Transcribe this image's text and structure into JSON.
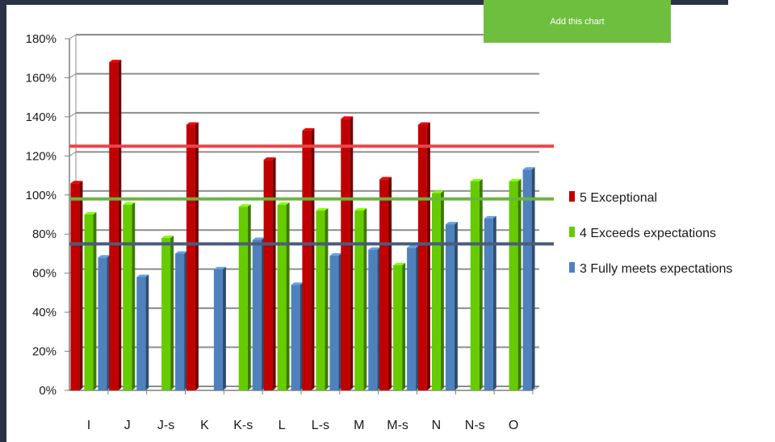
{
  "add_button": {
    "label": "Add this chart"
  },
  "chart_data": {
    "type": "bar",
    "categories": [
      "I",
      "J",
      "J-s",
      "K",
      "K-s",
      "L",
      "L-s",
      "M",
      "M-s",
      "N",
      "N-s",
      "O"
    ],
    "series": [
      {
        "name": "5 Exceptional",
        "color": "#c00000",
        "values": [
          106,
          168,
          null,
          136,
          null,
          118,
          133,
          139,
          108,
          136,
          null,
          null
        ]
      },
      {
        "name": "4 Exceeds expectations",
        "color": "#66cc00",
        "values": [
          90,
          95,
          78,
          null,
          94,
          95,
          92,
          92,
          64,
          101,
          107,
          107
        ]
      },
      {
        "name": "3 Fully meets expectations",
        "color": "#4f81bd",
        "values": [
          68,
          58,
          70,
          62,
          77,
          54,
          69,
          72,
          73,
          85,
          88,
          113
        ]
      }
    ],
    "reference_lines": [
      {
        "value": 125,
        "color": "#e8474b"
      },
      {
        "value": 98,
        "color": "#6ab63c"
      },
      {
        "value": 75,
        "color": "#4b5c7c"
      }
    ],
    "ylim": [
      0,
      180
    ],
    "yticks": [
      "0%",
      "20%",
      "40%",
      "60%",
      "80%",
      "100%",
      "120%",
      "140%",
      "160%",
      "180%"
    ],
    "legend_position": "right",
    "grid": true
  }
}
